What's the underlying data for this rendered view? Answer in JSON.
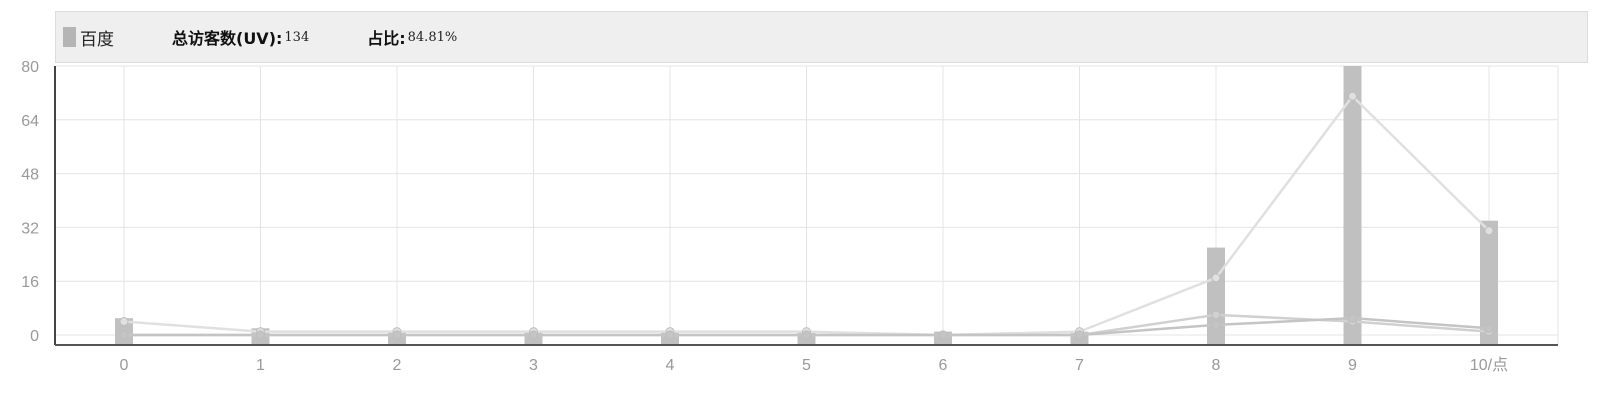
{
  "legend": {
    "series_name": "百度",
    "uv_label": "总访客数(UV):",
    "uv_value": "134",
    "share_label": "占比:",
    "share_value": "84.81%",
    "swatch_color": "#b5b5b5"
  },
  "chart_data": {
    "type": "bar",
    "categories": [
      "0",
      "1",
      "2",
      "3",
      "4",
      "5",
      "6",
      "7",
      "8",
      "9",
      "10/点"
    ],
    "y_ticks": [
      "0",
      "16",
      "32",
      "48",
      "64",
      "80"
    ],
    "ylim": [
      0,
      80
    ],
    "grid": true,
    "bar_color": "#c0c0c0",
    "values": [
      5,
      2,
      1,
      1,
      1,
      1,
      1,
      1,
      26,
      80,
      34
    ],
    "lines": [
      {
        "color": "#e0e0e0",
        "values": [
          4,
          1,
          1,
          1,
          1,
          1,
          0,
          1,
          17,
          71,
          31
        ]
      },
      {
        "color": "#d0d0d0",
        "values": [
          0,
          0,
          0,
          0,
          0,
          0,
          0,
          0,
          6,
          4,
          1
        ]
      },
      {
        "color": "#c4c4c4",
        "values": [
          0,
          0,
          0,
          0,
          0,
          0,
          0,
          0,
          3,
          5,
          2
        ]
      }
    ]
  }
}
